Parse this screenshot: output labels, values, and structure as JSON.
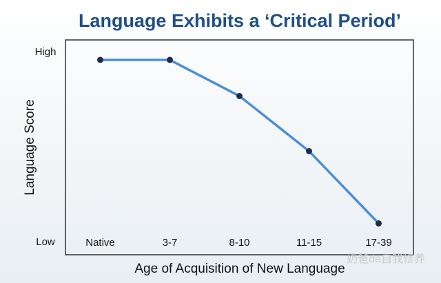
{
  "chart_data": {
    "type": "line",
    "title": "Language Exhibits a ‘Critical Period’",
    "x_label": "Age of Acquisition of New Language",
    "y_label": "Language Score",
    "categories": [
      "Native",
      "3-7",
      "8-10",
      "11-15",
      "17-39"
    ],
    "series": [
      {
        "color": "#4a8fd6",
        "values": [
          96,
          96,
          77,
          48,
          10
        ]
      }
    ],
    "ylim": [
      -6.5,
      106.5
    ],
    "yticks": [
      {
        "value": 100,
        "label": "High"
      },
      {
        "value": 0,
        "label": "Low"
      }
    ],
    "grid": false,
    "watermark": "奶爸de自我修养"
  }
}
